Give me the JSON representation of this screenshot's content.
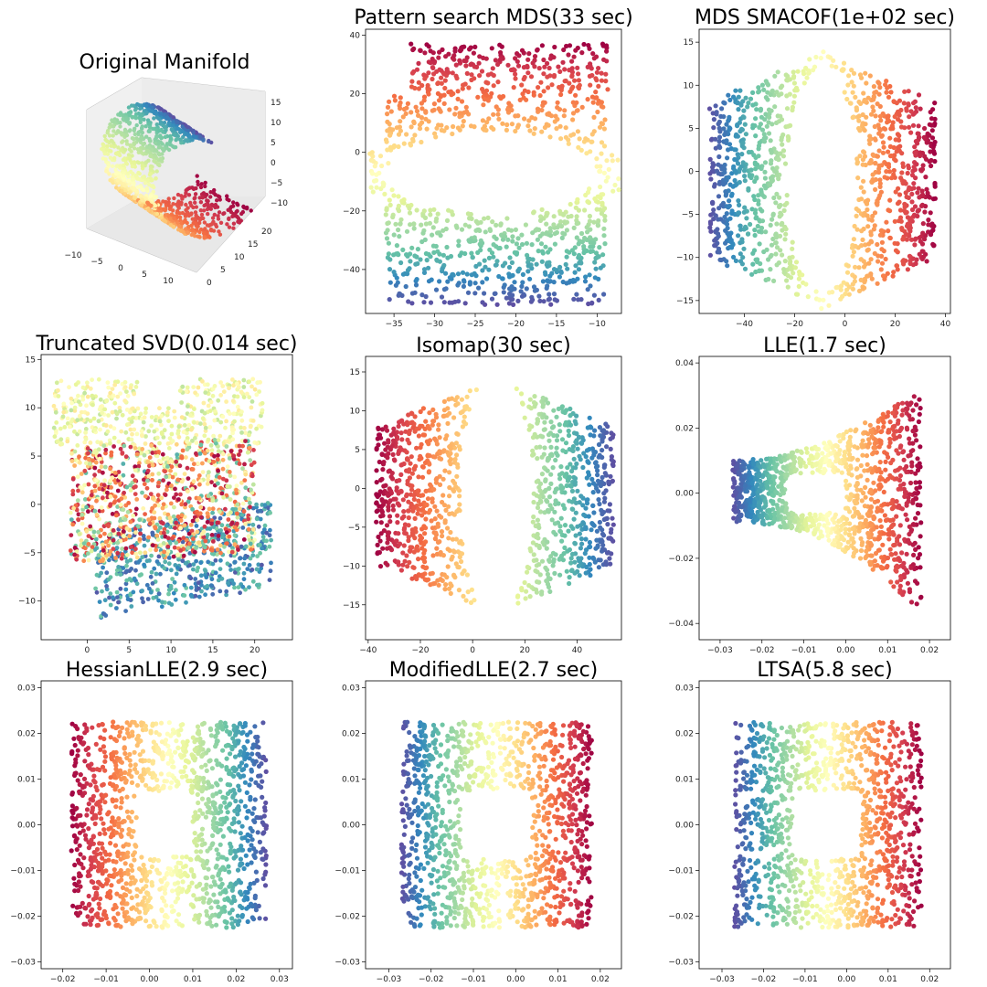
{
  "figure_title": "",
  "chart_data": [
    {
      "id": "original",
      "type": "scatter3d",
      "title": "Original Manifold",
      "x_ticks": [
        "−10",
        "−5",
        "0",
        "5",
        "10"
      ],
      "y_ticks": [
        "0",
        "5",
        "10",
        "15",
        "20"
      ],
      "z_ticks": [
        "−10",
        "−5",
        "0",
        "5",
        "10",
        "15"
      ],
      "description": "Severed sphere / swiss-roll-like 3D point cloud colored by manifold parameter"
    },
    {
      "id": "pattern_mds",
      "type": "scatter",
      "title": "Pattern search MDS(33 sec)",
      "shape": "frame_hole_horizontal",
      "xlim": [
        -38.5,
        -7
      ],
      "ylim": [
        -55,
        42
      ],
      "x_ticks": [
        -35,
        -30,
        -25,
        -20,
        -15,
        -10
      ],
      "y_ticks": [
        -40,
        -20,
        0,
        20,
        40
      ],
      "y_tick_labels": [
        "−40",
        "−20",
        "0",
        "20",
        "40"
      ],
      "x_tick_labels": [
        "−35",
        "−30",
        "−25",
        "−20",
        "−15",
        "−10"
      ],
      "color_axis": "y_descending",
      "region": {
        "x": [
          -38,
          -8
        ],
        "y": [
          -52,
          37
        ],
        "hole_center": [
          -23,
          -7
        ],
        "hole_radii": [
          13,
          14
        ]
      }
    },
    {
      "id": "mds_smacof",
      "type": "scatter",
      "title": "MDS SMACOF(1e+02 sec)",
      "shape": "bowtie_vertical_hole",
      "xlim": [
        -58,
        42
      ],
      "ylim": [
        -16.5,
        16.5
      ],
      "x_ticks": [
        -40,
        -20,
        0,
        20,
        40
      ],
      "x_tick_labels": [
        "−40",
        "−20",
        "0",
        "20",
        "40"
      ],
      "y_ticks": [
        -15,
        -10,
        -5,
        0,
        5,
        10,
        15
      ],
      "y_tick_labels": [
        "−15",
        "−10",
        "−5",
        "0",
        "5",
        "10",
        "15"
      ],
      "color_axis": "x_ascending",
      "region": {
        "x": [
          -54,
          36
        ],
        "y": [
          -15,
          15
        ],
        "hole_center": [
          -9,
          -1
        ],
        "hole_radii": [
          14,
          13
        ]
      }
    },
    {
      "id": "truncated_svd",
      "type": "scatter",
      "title": "Truncated SVD(0.014 sec)",
      "shape": "overlapping_bands",
      "xlim": [
        -5.5,
        24.5
      ],
      "ylim": [
        -14,
        15.5
      ],
      "x_ticks": [
        0,
        5,
        10,
        15,
        20
      ],
      "x_tick_labels": [
        "0",
        "5",
        "10",
        "15",
        "20"
      ],
      "y_ticks": [
        -10,
        -5,
        0,
        5,
        10,
        15
      ],
      "y_tick_labels": [
        "−10",
        "−5",
        "0",
        "5",
        "10",
        "15"
      ],
      "color_axis": "mixed"
    },
    {
      "id": "isomap",
      "type": "scatter",
      "title": "Isomap(30 sec)",
      "shape": "bowtie_vertical_hole",
      "xlim": [
        -41,
        57
      ],
      "ylim": [
        -19.5,
        17
      ],
      "x_ticks": [
        -40,
        -20,
        0,
        20,
        40
      ],
      "x_tick_labels": [
        "−40",
        "−20",
        "0",
        "20",
        "40"
      ],
      "y_ticks": [
        -15,
        -10,
        -5,
        0,
        5,
        10,
        15
      ],
      "y_tick_labels": [
        "−15",
        "−10",
        "−5",
        "0",
        "5",
        "10",
        "15"
      ],
      "color_axis": "x_descending",
      "region": {
        "x": [
          -37,
          54
        ],
        "y": [
          -18,
          15.5
        ],
        "hole_center": [
          9,
          -1
        ],
        "hole_radii": [
          14,
          16
        ]
      }
    },
    {
      "id": "lle",
      "type": "scatter",
      "title": "LLE(1.7 sec)",
      "shape": "flare_right",
      "xlim": [
        -0.035,
        0.025
      ],
      "ylim": [
        -0.045,
        0.042
      ],
      "x_ticks": [
        -0.03,
        -0.02,
        -0.01,
        0.0,
        0.01,
        0.02
      ],
      "x_tick_labels": [
        "−0.03",
        "−0.02",
        "−0.01",
        "0.00",
        "0.01",
        "0.02"
      ],
      "y_ticks": [
        -0.04,
        -0.02,
        0.0,
        0.02,
        0.04
      ],
      "y_tick_labels": [
        "−0.04",
        "−0.02",
        "0.00",
        "0.02",
        "0.04"
      ],
      "color_axis": "x_ascending",
      "region": {
        "x": [
          -0.027,
          0.018
        ],
        "hole_x": [
          -0.014,
          0.0
        ],
        "hole_y": [
          -0.006,
          0.006
        ]
      }
    },
    {
      "id": "hessian_lle",
      "type": "scatter",
      "title": "HessianLLE(2.9 sec)",
      "shape": "square_hole",
      "xlim": [
        -0.025,
        0.033
      ],
      "ylim": [
        -0.0315,
        0.0315
      ],
      "x_ticks": [
        -0.02,
        -0.01,
        0.0,
        0.01,
        0.02,
        0.03
      ],
      "x_tick_labels": [
        "−0.02",
        "−0.01",
        "0.00",
        "0.01",
        "0.02",
        "0.03"
      ],
      "y_ticks": [
        -0.03,
        -0.02,
        -0.01,
        0.0,
        0.01,
        0.02,
        0.03
      ],
      "y_tick_labels": [
        "−0.03",
        "−0.02",
        "−0.01",
        "0.00",
        "0.01",
        "0.02",
        "0.03"
      ],
      "color_axis": "x_descending",
      "region": {
        "x": [
          -0.018,
          0.027
        ],
        "y": [
          -0.0225,
          0.0225
        ],
        "hole_x": [
          -0.003,
          0.01
        ],
        "hole_y": [
          -0.007,
          0.007
        ]
      }
    },
    {
      "id": "modified_lle",
      "type": "scatter",
      "title": "ModifiedLLE(2.7 sec)",
      "shape": "square_hole",
      "xlim": [
        -0.0355,
        0.025
      ],
      "ylim": [
        -0.0315,
        0.0315
      ],
      "x_ticks": [
        -0.03,
        -0.02,
        -0.01,
        0.0,
        0.01,
        0.02
      ],
      "x_tick_labels": [
        "−0.03",
        "−0.02",
        "−0.01",
        "0.00",
        "0.01",
        "0.02"
      ],
      "y_ticks": [
        -0.03,
        -0.02,
        -0.01,
        0.0,
        0.01,
        0.02,
        0.03
      ],
      "y_tick_labels": [
        "−0.03",
        "−0.02",
        "−0.01",
        "0.00",
        "0.01",
        "0.02",
        "0.03"
      ],
      "color_axis": "x_ascending",
      "region": {
        "x": [
          -0.027,
          0.018
        ],
        "y": [
          -0.0225,
          0.0225
        ],
        "hole_x": [
          -0.013,
          0.0035
        ],
        "hole_y": [
          -0.0075,
          0.0075
        ]
      }
    },
    {
      "id": "ltsa",
      "type": "scatter",
      "title": "LTSA(5.8 sec)",
      "shape": "square_hole",
      "xlim": [
        -0.0355,
        0.025
      ],
      "ylim": [
        -0.0315,
        0.0315
      ],
      "x_ticks": [
        -0.03,
        -0.02,
        -0.01,
        0.0,
        0.01,
        0.02
      ],
      "x_tick_labels": [
        "−0.03",
        "−0.02",
        "−0.01",
        "0.00",
        "0.01",
        "0.02"
      ],
      "y_ticks": [
        -0.03,
        -0.02,
        -0.01,
        0.0,
        0.01,
        0.02,
        0.03
      ],
      "y_tick_labels": [
        "−0.03",
        "−0.02",
        "−0.01",
        "0.00",
        "0.01",
        "0.02",
        "0.03"
      ],
      "color_axis": "x_ascending",
      "region": {
        "x": [
          -0.027,
          0.018
        ],
        "y": [
          -0.0225,
          0.0225
        ],
        "hole_x": [
          -0.013,
          0.0035
        ],
        "hole_y": [
          -0.0075,
          0.0075
        ]
      }
    }
  ]
}
